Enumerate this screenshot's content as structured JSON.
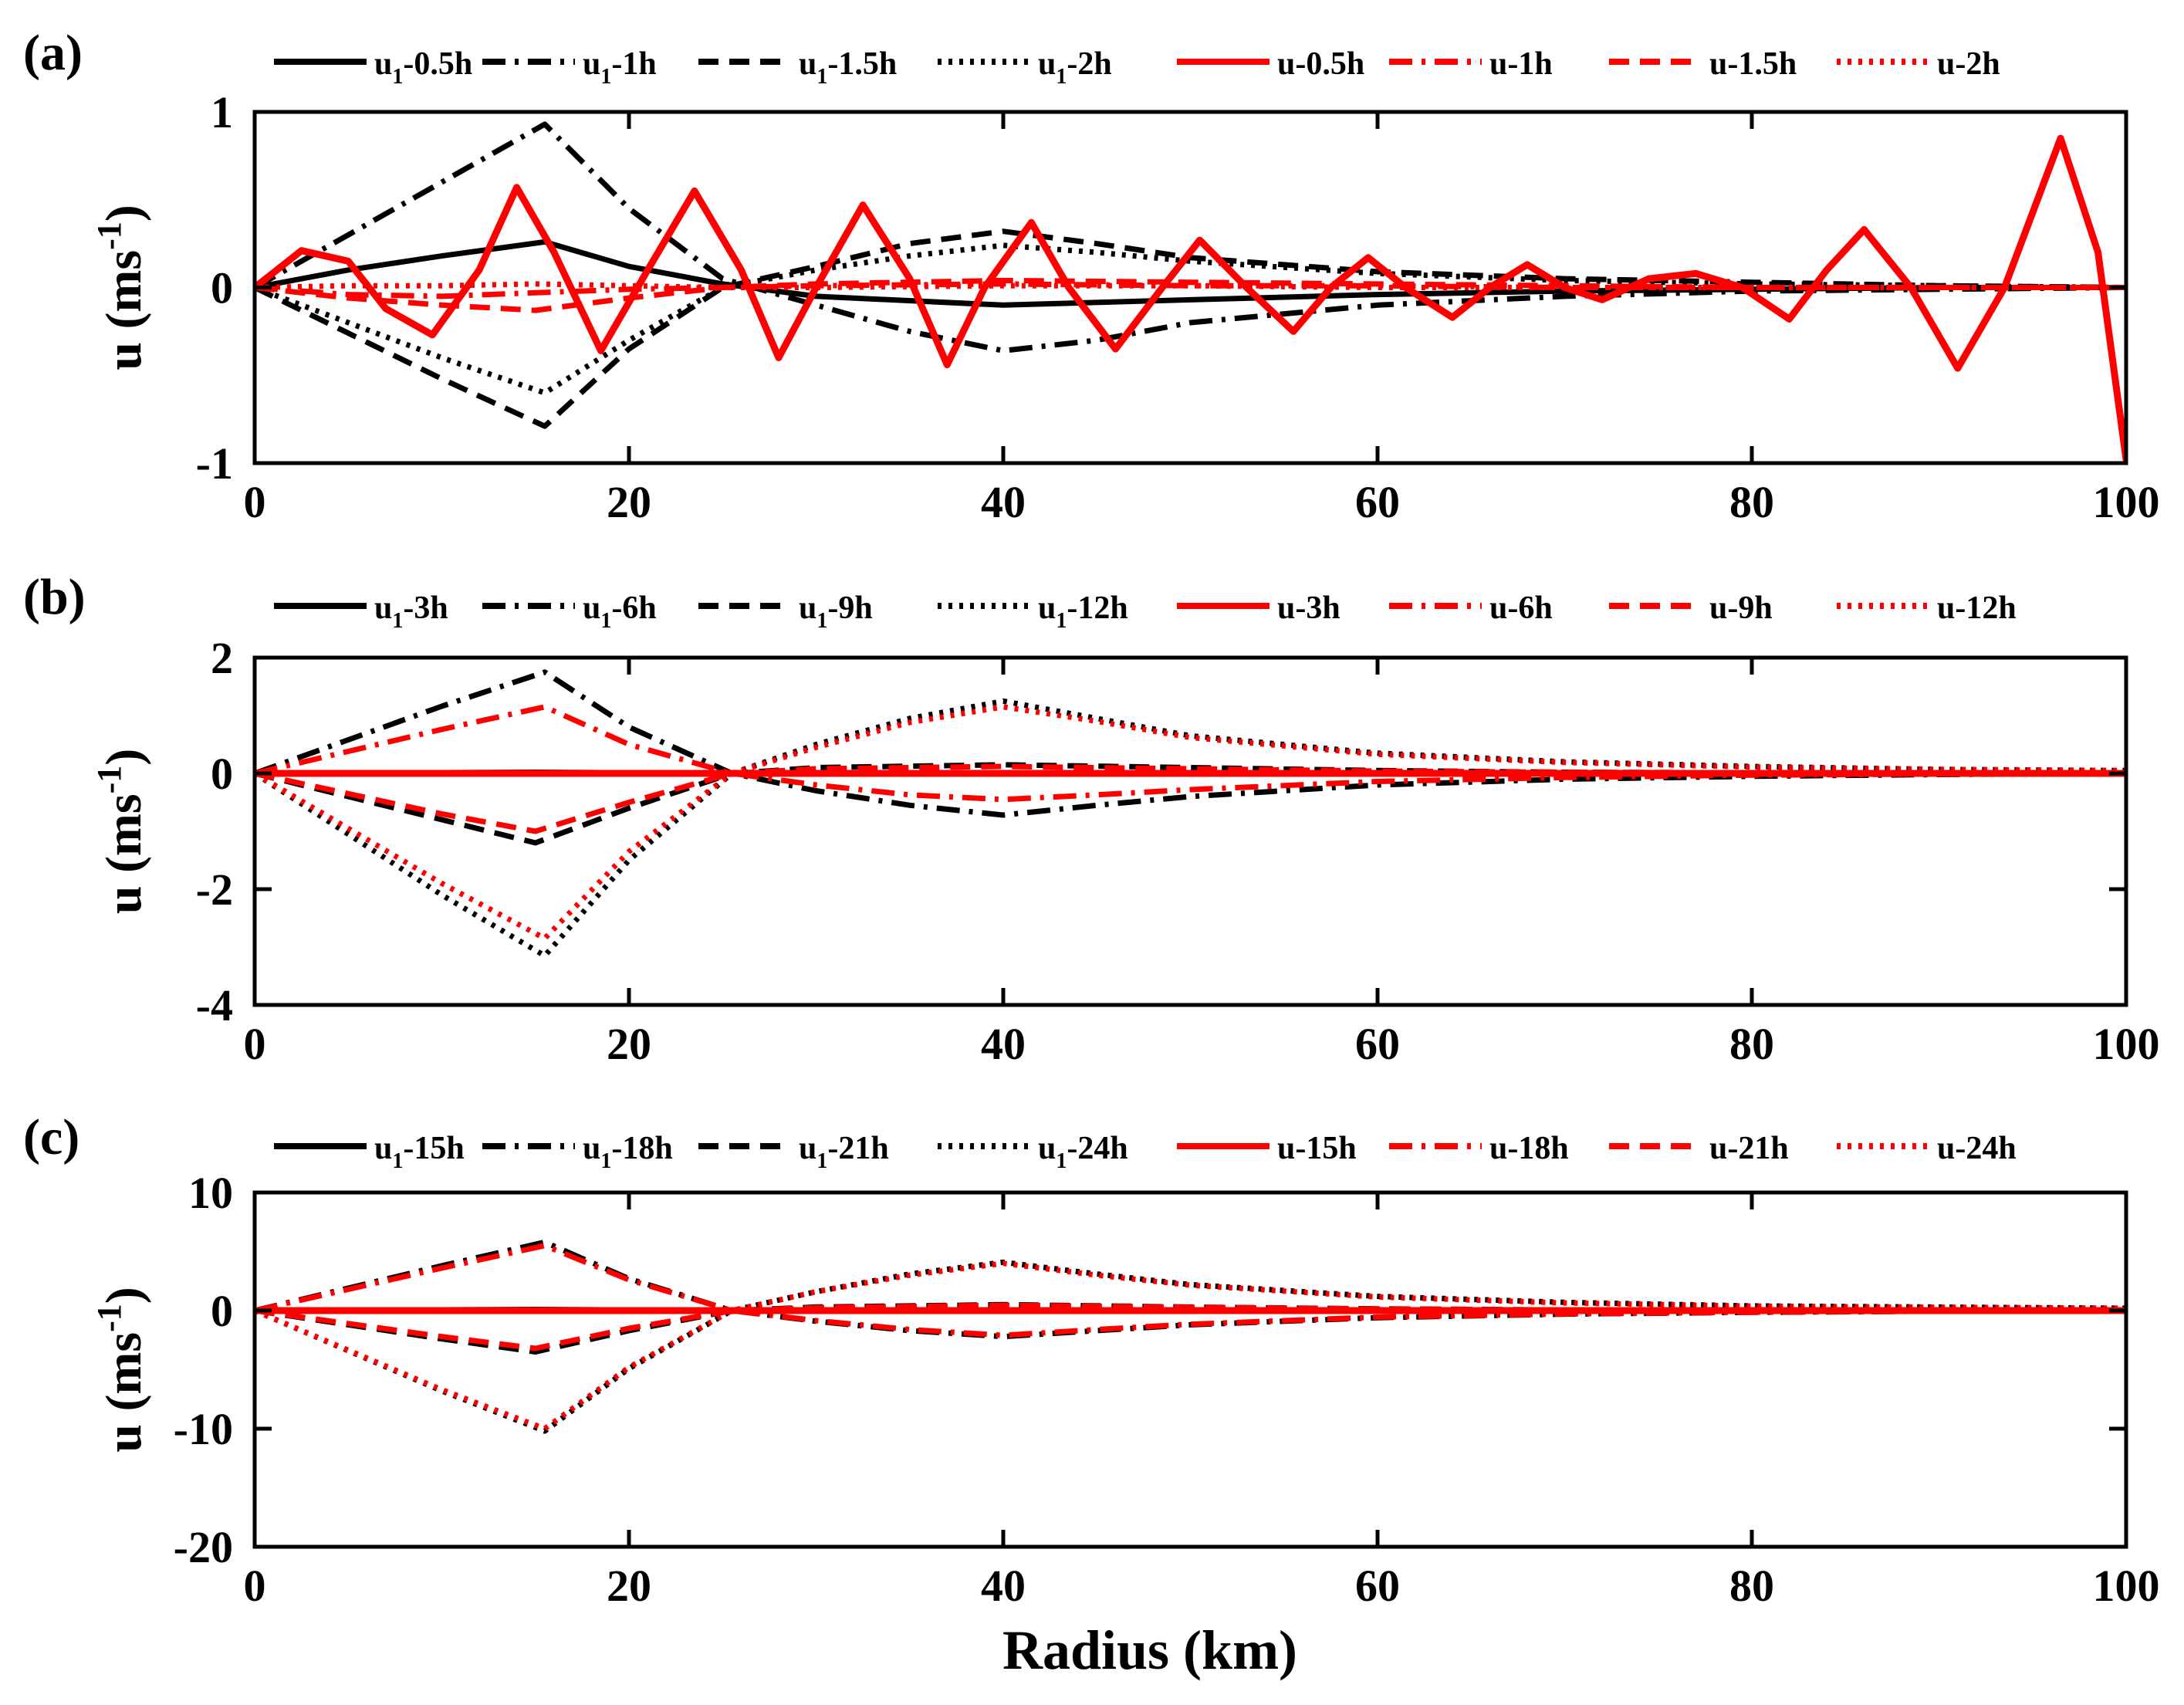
{
  "figure": {
    "xlabel": "Radius (km)"
  },
  "chart_data": [
    {
      "type": "line",
      "panel": "(a)",
      "ylabel": "u (ms",
      "ylabel_sup": "-1",
      "ylabel_end": ")",
      "xlim": [
        0,
        100
      ],
      "ylim": [
        -1,
        1
      ],
      "xticks": [
        0,
        20,
        40,
        60,
        80,
        100
      ],
      "yticks": [
        -1,
        0,
        1
      ],
      "series": [
        {
          "name": "u1-0.5h",
          "legend_main": "u",
          "legend_sub": "1",
          "legend_rest": "-0.5h",
          "color": "#000000",
          "style": "solid",
          "x": [
            0,
            5,
            10,
            15.5,
            20,
            25,
            30,
            40,
            50,
            60,
            70,
            80,
            90,
            100
          ],
          "y": [
            0,
            0.1,
            0.18,
            0.26,
            0.12,
            0.02,
            -0.05,
            -0.1,
            -0.07,
            -0.04,
            -0.02,
            -0.01,
            0,
            0
          ]
        },
        {
          "name": "u1-1h",
          "legend_main": "u",
          "legend_sub": "1",
          "legend_rest": "-1h",
          "color": "#000000",
          "style": "dashdot",
          "x": [
            0,
            5,
            10,
            15.5,
            20,
            25,
            30,
            35,
            40,
            45,
            50,
            60,
            70,
            80,
            90,
            100
          ],
          "y": [
            0,
            0.3,
            0.6,
            0.93,
            0.45,
            0.05,
            -0.1,
            -0.25,
            -0.36,
            -0.3,
            -0.2,
            -0.1,
            -0.05,
            -0.02,
            -0.01,
            0
          ]
        },
        {
          "name": "u1-1.5h",
          "legend_main": "u",
          "legend_sub": "1",
          "legend_rest": "-1.5h",
          "color": "#000000",
          "style": "dashed",
          "x": [
            0,
            5,
            10,
            15.5,
            20,
            25,
            30,
            35,
            40,
            45,
            50,
            60,
            70,
            80,
            90,
            100
          ],
          "y": [
            0,
            -0.26,
            -0.52,
            -0.79,
            -0.35,
            0,
            0.12,
            0.25,
            0.32,
            0.25,
            0.17,
            0.09,
            0.05,
            0.03,
            0.01,
            0
          ]
        },
        {
          "name": "u1-2h",
          "legend_main": "u",
          "legend_sub": "1",
          "legend_rest": "-2h",
          "color": "#000000",
          "style": "dotted",
          "x": [
            0,
            5,
            10,
            15.5,
            20,
            25,
            30,
            35,
            40,
            45,
            50,
            60,
            70,
            80,
            90,
            100
          ],
          "y": [
            0,
            -0.2,
            -0.4,
            -0.6,
            -0.3,
            0,
            0.1,
            0.18,
            0.24,
            0.2,
            0.15,
            0.08,
            0.04,
            0.02,
            0.01,
            0
          ]
        },
        {
          "name": "u-0.5h",
          "legend_main": "u-0.5h",
          "legend_sub": "",
          "legend_rest": "",
          "color": "#ff0000",
          "style": "solid",
          "x": [
            0,
            2.5,
            5,
            7,
            9.5,
            12,
            14,
            16,
            18.5,
            21,
            23.5,
            26,
            28,
            30,
            32.5,
            35,
            37,
            39,
            41.5,
            43.5,
            46,
            48.5,
            50.5,
            53,
            55.5,
            57.5,
            59.5,
            61.5,
            64,
            66,
            68,
            70,
            72,
            74.5,
            77,
            79.5,
            82,
            84,
            86,
            88.5,
            91,
            93.5,
            96.5,
            98.5,
            100
          ],
          "y": [
            0,
            0.21,
            0.15,
            -0.12,
            -0.27,
            0.1,
            0.57,
            0.2,
            -0.36,
            0.1,
            0.55,
            0.1,
            -0.4,
            0,
            0.47,
            0.05,
            -0.44,
            0,
            0.37,
            0,
            -0.35,
            0,
            0.27,
            0,
            -0.25,
            0,
            0.17,
            0,
            -0.17,
            0,
            0.13,
            0,
            -0.07,
            0.05,
            0.08,
            0,
            -0.18,
            0.1,
            0.33,
            0,
            -0.46,
            0,
            0.85,
            0.2,
            -0.98
          ]
        },
        {
          "name": "u-1h",
          "legend_main": "u-1h",
          "legend_sub": "",
          "legend_rest": "",
          "color": "#ff0000",
          "style": "dashdot",
          "x": [
            0,
            5,
            10,
            15,
            20,
            25,
            30,
            40,
            50,
            60,
            70,
            80,
            90,
            100
          ],
          "y": [
            0,
            -0.04,
            -0.05,
            -0.03,
            -0.01,
            0,
            0.01,
            0.02,
            0.01,
            0.01,
            0,
            0,
            0,
            0
          ]
        },
        {
          "name": "u-1.5h",
          "legend_main": "u-1.5h",
          "legend_sub": "",
          "legend_rest": "",
          "color": "#ff0000",
          "style": "dashed",
          "x": [
            0,
            5,
            10,
            15,
            20,
            25,
            30,
            40,
            50,
            60,
            70,
            80,
            90,
            100
          ],
          "y": [
            0,
            -0.06,
            -0.1,
            -0.13,
            -0.06,
            0,
            0.02,
            0.04,
            0.03,
            0.02,
            0.01,
            0,
            0,
            0
          ]
        },
        {
          "name": "u-2h",
          "legend_main": "u-2h",
          "legend_sub": "",
          "legend_rest": "",
          "color": "#ff0000",
          "style": "dotted",
          "x": [
            0,
            5,
            10,
            15,
            20,
            25,
            30,
            40,
            50,
            60,
            70,
            80,
            90,
            100
          ],
          "y": [
            0,
            0.01,
            0.01,
            0.02,
            0.01,
            0,
            0,
            0.01,
            0.01,
            0,
            0,
            0,
            0,
            0
          ]
        }
      ]
    },
    {
      "type": "line",
      "panel": "(b)",
      "ylabel": "u (ms",
      "ylabel_sup": "-1",
      "ylabel_end": ")",
      "xlim": [
        0,
        100
      ],
      "ylim": [
        -4,
        2
      ],
      "xticks": [
        0,
        20,
        40,
        60,
        80,
        100
      ],
      "yticks": [
        -4,
        -2,
        0,
        2
      ],
      "series": [
        {
          "name": "u1-3h",
          "legend_main": "u",
          "legend_sub": "1",
          "legend_rest": "-3h",
          "color": "#000000",
          "style": "solid",
          "x": [
            0,
            15,
            25,
            40,
            60,
            80,
            100
          ],
          "y": [
            0,
            0.02,
            0,
            -0.01,
            0,
            0,
            0
          ]
        },
        {
          "name": "u1-6h",
          "legend_main": "u",
          "legend_sub": "1",
          "legend_rest": "-6h",
          "color": "#000000",
          "style": "dashdot",
          "x": [
            0,
            5,
            10,
            15.5,
            20,
            25.5,
            30,
            35,
            40,
            45,
            50,
            60,
            70,
            80,
            90,
            100
          ],
          "y": [
            0,
            0.58,
            1.16,
            1.75,
            0.8,
            0,
            -0.3,
            -0.55,
            -0.72,
            -0.55,
            -0.4,
            -0.2,
            -0.1,
            -0.05,
            -0.02,
            0
          ]
        },
        {
          "name": "u1-9h",
          "legend_main": "u",
          "legend_sub": "1",
          "legend_rest": "-9h",
          "color": "#000000",
          "style": "dashed",
          "x": [
            0,
            5,
            10,
            15,
            20,
            25.5,
            30,
            40,
            50,
            60,
            70,
            80,
            90,
            100
          ],
          "y": [
            0,
            -0.4,
            -0.8,
            -1.2,
            -0.6,
            0,
            0.1,
            0.15,
            0.1,
            0.05,
            0.02,
            0.01,
            0,
            0
          ]
        },
        {
          "name": "u1-12h",
          "legend_main": "u",
          "legend_sub": "1",
          "legend_rest": "-12h",
          "color": "#000000",
          "style": "dotted",
          "x": [
            0,
            5,
            10,
            15.5,
            20,
            25.5,
            30,
            35,
            40,
            45,
            50,
            60,
            70,
            80,
            90,
            100
          ],
          "y": [
            0,
            -1.05,
            -2.1,
            -3.15,
            -1.5,
            0,
            0.5,
            0.95,
            1.25,
            0.95,
            0.65,
            0.35,
            0.2,
            0.12,
            0.07,
            0.05
          ]
        },
        {
          "name": "u-3h",
          "legend_main": "u-3h",
          "legend_sub": "",
          "legend_rest": "",
          "color": "#ff0000",
          "style": "solid",
          "x": [
            0,
            100
          ],
          "y": [
            0,
            0
          ]
        },
        {
          "name": "u-6h",
          "legend_main": "u-6h",
          "legend_sub": "",
          "legend_rest": "",
          "color": "#ff0000",
          "style": "dashdot",
          "x": [
            0,
            5,
            10,
            15.5,
            20,
            25.5,
            30,
            35,
            40,
            45,
            50,
            60,
            70,
            80,
            90,
            100
          ],
          "y": [
            0,
            0.38,
            0.76,
            1.15,
            0.5,
            0,
            -0.2,
            -0.37,
            -0.45,
            -0.37,
            -0.28,
            -0.14,
            -0.07,
            -0.03,
            -0.01,
            0
          ]
        },
        {
          "name": "u-9h",
          "legend_main": "u-9h",
          "legend_sub": "",
          "legend_rest": "",
          "color": "#ff0000",
          "style": "dashed",
          "x": [
            0,
            5,
            10,
            15,
            20,
            25.5,
            30,
            40,
            50,
            60,
            70,
            80,
            90,
            100
          ],
          "y": [
            0,
            -0.35,
            -0.7,
            -1.0,
            -0.5,
            0,
            0.08,
            0.12,
            0.08,
            0.04,
            0.02,
            0.01,
            0,
            0
          ]
        },
        {
          "name": "u-12h",
          "legend_main": "u-12h",
          "legend_sub": "",
          "legend_rest": "",
          "color": "#ff0000",
          "style": "dotted",
          "x": [
            0,
            5,
            10,
            15.5,
            20,
            25.5,
            30,
            35,
            40,
            45,
            50,
            60,
            70,
            80,
            90,
            100
          ],
          "y": [
            0,
            -0.95,
            -1.9,
            -2.85,
            -1.35,
            0,
            0.45,
            0.88,
            1.15,
            0.9,
            0.62,
            0.33,
            0.19,
            0.11,
            0.07,
            0.05
          ]
        }
      ]
    },
    {
      "type": "line",
      "panel": "(c)",
      "ylabel": "u (ms",
      "ylabel_sup": "-1",
      "ylabel_end": ")",
      "xlim": [
        0,
        100
      ],
      "ylim": [
        -20,
        10
      ],
      "xticks": [
        0,
        20,
        40,
        60,
        80,
        100
      ],
      "yticks": [
        -20,
        -10,
        0,
        10
      ],
      "series": [
        {
          "name": "u1-15h",
          "legend_main": "u",
          "legend_sub": "1",
          "legend_rest": "-15h",
          "color": "#000000",
          "style": "solid",
          "x": [
            0,
            15,
            25,
            40,
            60,
            80,
            100
          ],
          "y": [
            0,
            0.1,
            0,
            -0.05,
            0,
            0,
            0
          ]
        },
        {
          "name": "u1-18h",
          "legend_main": "u",
          "legend_sub": "1",
          "legend_rest": "-18h",
          "color": "#000000",
          "style": "dashdot",
          "x": [
            0,
            5,
            10,
            15.5,
            20,
            25.5,
            30,
            35,
            40,
            45,
            50,
            60,
            70,
            80,
            90,
            100
          ],
          "y": [
            0,
            1.9,
            3.8,
            5.8,
            2.7,
            0,
            -0.9,
            -1.7,
            -2.2,
            -1.7,
            -1.2,
            -0.6,
            -0.3,
            -0.15,
            -0.05,
            0
          ]
        },
        {
          "name": "u1-21h",
          "legend_main": "u",
          "legend_sub": "1",
          "legend_rest": "-21h",
          "color": "#000000",
          "style": "dashed",
          "x": [
            0,
            5,
            10,
            15,
            20,
            25.5,
            30,
            40,
            50,
            60,
            70,
            80,
            90,
            100
          ],
          "y": [
            0,
            -1.2,
            -2.4,
            -3.5,
            -1.7,
            0,
            0.3,
            0.5,
            0.3,
            0.15,
            0.05,
            0.02,
            0,
            0
          ]
        },
        {
          "name": "u1-24h",
          "legend_main": "u",
          "legend_sub": "1",
          "legend_rest": "-24h",
          "color": "#000000",
          "style": "dotted",
          "x": [
            0,
            5,
            10,
            15.5,
            20,
            25.5,
            30,
            35,
            40,
            45,
            50,
            60,
            70,
            80,
            90,
            100
          ],
          "y": [
            0,
            -3.4,
            -6.8,
            -10.2,
            -4.9,
            0,
            1.6,
            3.1,
            4.1,
            3.1,
            2.2,
            1.2,
            0.7,
            0.4,
            0.3,
            0.2
          ]
        },
        {
          "name": "u-15h",
          "legend_main": "u-15h",
          "legend_sub": "",
          "legend_rest": "",
          "color": "#ff0000",
          "style": "solid",
          "x": [
            0,
            100
          ],
          "y": [
            0,
            0
          ]
        },
        {
          "name": "u-18h",
          "legend_main": "u-18h",
          "legend_sub": "",
          "legend_rest": "",
          "color": "#ff0000",
          "style": "dashdot",
          "x": [
            0,
            5,
            10,
            15.5,
            20,
            25.5,
            30,
            35,
            40,
            45,
            50,
            60,
            70,
            80,
            90,
            100
          ],
          "y": [
            0,
            1.8,
            3.6,
            5.5,
            2.6,
            0,
            -0.85,
            -1.6,
            -2.1,
            -1.6,
            -1.15,
            -0.55,
            -0.28,
            -0.14,
            -0.05,
            0
          ]
        },
        {
          "name": "u-21h",
          "legend_main": "u-21h",
          "legend_sub": "",
          "legend_rest": "",
          "color": "#ff0000",
          "style": "dashed",
          "x": [
            0,
            5,
            10,
            15,
            20,
            25.5,
            30,
            40,
            50,
            60,
            70,
            80,
            90,
            100
          ],
          "y": [
            0,
            -1.1,
            -2.2,
            -3.2,
            -1.5,
            0,
            0.25,
            0.45,
            0.28,
            0.14,
            0.05,
            0.02,
            0,
            0
          ]
        },
        {
          "name": "u-24h",
          "legend_main": "u-24h",
          "legend_sub": "",
          "legend_rest": "",
          "color": "#ff0000",
          "style": "dotted",
          "x": [
            0,
            5,
            10,
            15.5,
            20,
            25.5,
            30,
            35,
            40,
            45,
            50,
            60,
            70,
            80,
            90,
            100
          ],
          "y": [
            0,
            -3.35,
            -6.7,
            -10.0,
            -4.8,
            0,
            1.6,
            3.0,
            4.0,
            3.0,
            2.15,
            1.15,
            0.65,
            0.38,
            0.28,
            0.2
          ]
        }
      ]
    }
  ]
}
